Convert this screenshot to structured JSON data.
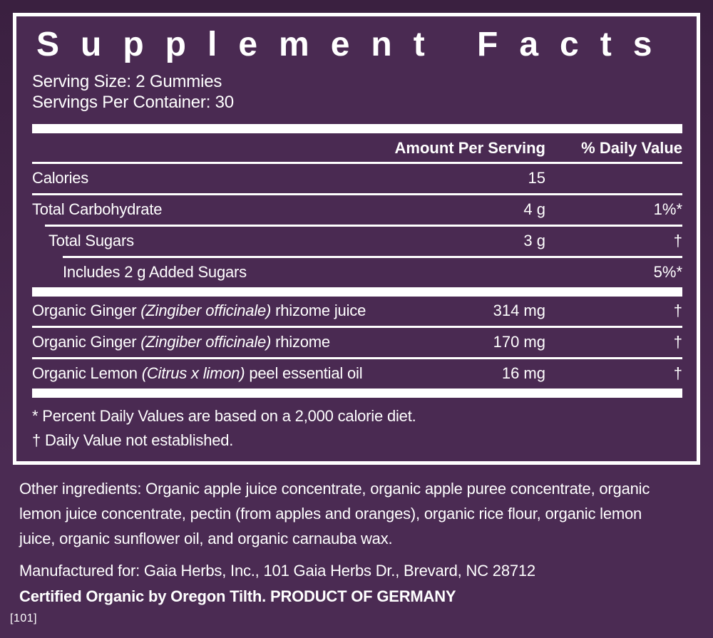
{
  "panel": {
    "title": "Supplement Facts",
    "serving_size": "Serving Size: 2 Gummies",
    "servings_per_container": "Servings Per Container: 30",
    "table": {
      "header": {
        "amount": "Amount Per Serving",
        "daily_value": "% Daily Value"
      },
      "rows": [
        {
          "text": "Calories",
          "amount": "15",
          "dv": "",
          "indent": 0,
          "rule": "full"
        },
        {
          "text": "Total Carbohydrate",
          "amount": "4 g",
          "dv": "1%*",
          "indent": 0,
          "rule": "full"
        },
        {
          "text": "Total Sugars",
          "amount": "3 g",
          "dv": "†",
          "indent": 1,
          "rule": "full"
        },
        {
          "text": "Includes 2 g Added Sugars",
          "amount": "",
          "dv": "5%*",
          "indent": 2,
          "rule": "full"
        },
        {
          "type": "bar"
        },
        {
          "prefix": "Organic Ginger ",
          "latin": "(Zingiber officinale)",
          "suffix": " rhizome juice",
          "amount": "314 mg",
          "dv": "†",
          "indent": 0,
          "rule": "none"
        },
        {
          "prefix": "Organic Ginger ",
          "latin": "(Zingiber officinale)",
          "suffix": " rhizome",
          "amount": "170 mg",
          "dv": "†",
          "indent": 0,
          "rule": "full"
        },
        {
          "prefix": "Organic Lemon ",
          "latin": "(Citrus x limon)",
          "suffix": " peel essential oil",
          "amount": "16 mg",
          "dv": "†",
          "indent": 0,
          "rule": "full"
        }
      ]
    },
    "footnotes": [
      "* Percent Daily Values are based on a 2,000 calorie diet.",
      "† Daily Value not established."
    ]
  },
  "footer": {
    "other_ingredients": "Other ingredients: Organic apple juice concentrate, organic apple puree concentrate, organic lemon juice concentrate, pectin (from apples and oranges), organic rice flour, organic lemon juice, organic sunflower oil, and organic carnauba wax.",
    "manufactured_for": "Manufactured for: Gaia Herbs, Inc., 101 Gaia Herbs Dr., Brevard, NC 28712",
    "certification": "Certified Organic by Oregon Tilth. PRODUCT OF GERMANY",
    "code": "[101]"
  },
  "colors": {
    "background_top": "#3a2040",
    "background_bottom": "#4b2b53",
    "panel_background": "#4a2a52",
    "panel_border": "#ffffff",
    "text": "#ffffff"
  }
}
